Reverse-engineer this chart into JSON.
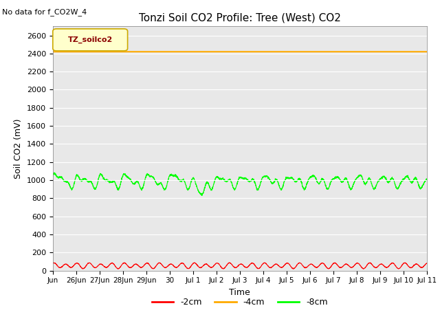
{
  "title": "Tonzi Soil CO2 Profile: Tree (West) CO2",
  "no_data_text": "No data for f_CO2W_4",
  "ylabel": "Soil CO2 (mV)",
  "xlabel": "Time",
  "ylim": [
    0,
    2700
  ],
  "yticks": [
    0,
    200,
    400,
    600,
    800,
    1000,
    1200,
    1400,
    1600,
    1800,
    2000,
    2200,
    2400,
    2600
  ],
  "background_color": "#e8e8e8",
  "legend_label": "TZ_soilco2",
  "legend_box_facecolor": "#ffffcc",
  "legend_box_edgecolor": "#ccaa00",
  "line_colors": {
    "neg2cm": "#ff0000",
    "neg4cm": "#ffaa00",
    "neg8cm": "#00ff00"
  },
  "line_labels": {
    "neg2cm": "-2cm",
    "neg4cm": "-4cm",
    "neg8cm": "-8cm"
  },
  "xtick_labels": [
    "Jun",
    "26Jun",
    "27Jun",
    "28Jun",
    "29Jun",
    "30",
    "Jul 1",
    "Jul 2",
    "Jul 3",
    "Jul 4",
    "Jul 5",
    "Jul 6",
    "Jul 7",
    "Jul 8",
    "Jul 9",
    "Jul 10",
    "Jul 11"
  ],
  "orange_line_value": 2420,
  "red_line_mean": 55,
  "red_line_amplitude": 25,
  "green_line_mean": 1000,
  "green_line_amplitude": 60,
  "oscillation_period": 1.0
}
